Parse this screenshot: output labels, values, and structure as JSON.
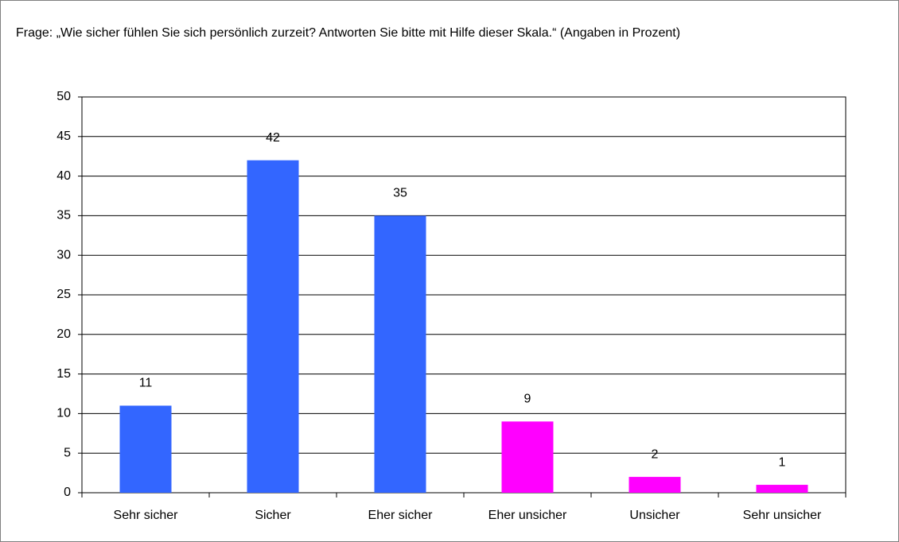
{
  "chart_data": {
    "type": "bar",
    "title": "Frage: „Wie sicher fühlen Sie sich persönlich zurzeit? Antworten Sie bitte mit Hilfe dieser Skala.“ (Angaben in Prozent)",
    "categories": [
      "Sehr sicher",
      "Sicher",
      "Eher sicher",
      "Eher unsicher",
      "Unsicher",
      "Sehr unsicher"
    ],
    "values": [
      11,
      42,
      35,
      9,
      2,
      1
    ],
    "colors": [
      "#3366ff",
      "#3366ff",
      "#3366ff",
      "#ff00ff",
      "#ff00ff",
      "#ff00ff"
    ],
    "ylim": [
      0,
      50
    ],
    "yticks": [
      0,
      5,
      10,
      15,
      20,
      25,
      30,
      35,
      40,
      45,
      50
    ],
    "grid": true
  }
}
